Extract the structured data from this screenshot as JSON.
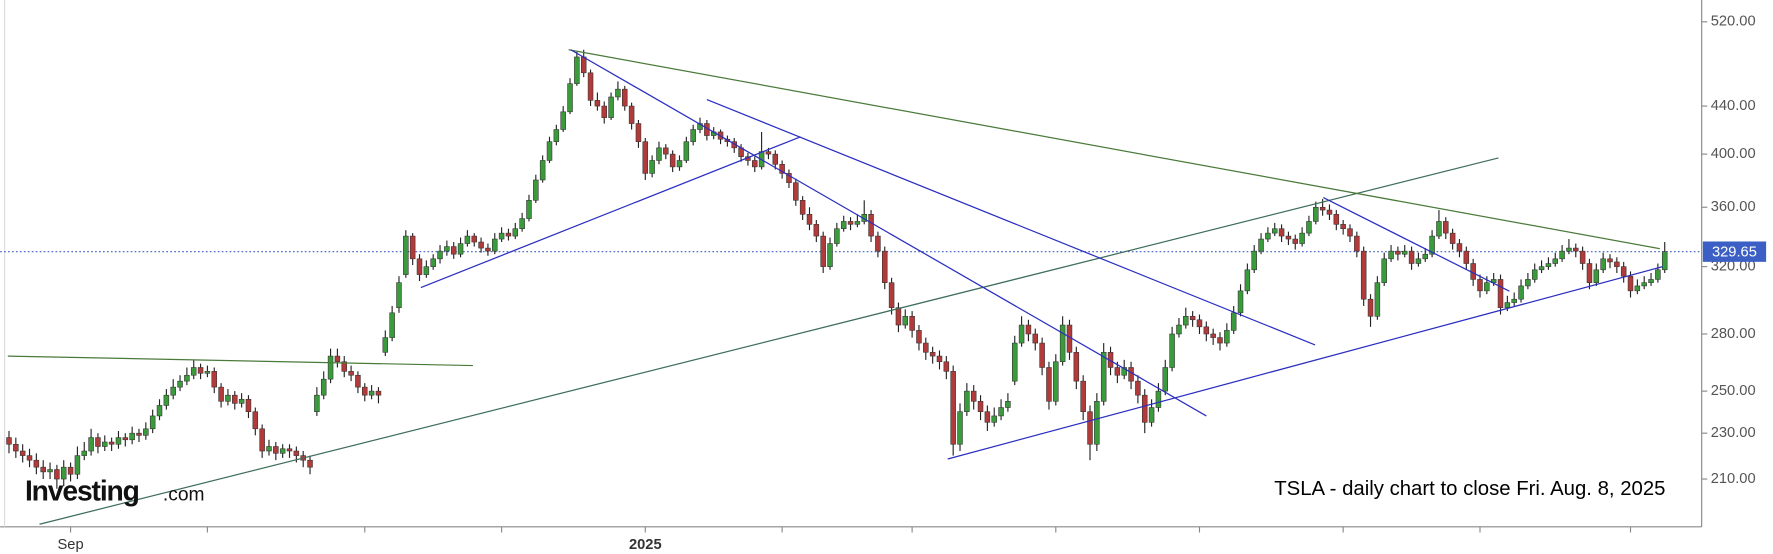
{
  "chart_data": {
    "type": "candlestick",
    "log_scale": true,
    "annotations": [
      "TSLA - daily chart to close Fri. Aug. 8, 2025"
    ],
    "watermark": [
      "Investing",
      ".com"
    ],
    "up_color": "#3b9a3b",
    "down_color": "#b13a3a",
    "last_price": 329.65,
    "last_price_color": "#3b5fc4",
    "xlim": [
      -1.3,
      247.4
    ],
    "xticks": [
      {
        "value": 9,
        "label": "Sep"
      },
      29,
      52,
      72,
      {
        "value": 93,
        "label": "2025"
      },
      113,
      132,
      153,
      174,
      195,
      215,
      237
    ],
    "ylim": [
      191,
      543
    ],
    "yticks": [
      {
        "value": 210,
        "label": "210.00"
      },
      {
        "value": 230,
        "label": "230.00"
      },
      {
        "value": 250,
        "label": "250.00"
      },
      {
        "value": 280,
        "label": "280.00"
      },
      {
        "value": 320,
        "label": "320.00"
      },
      {
        "value": 360,
        "label": "360.00"
      },
      {
        "value": 400,
        "label": "400.00"
      },
      {
        "value": 440,
        "label": "440.00"
      },
      {
        "value": 520,
        "label": "520.00"
      }
    ],
    "trendlines": [
      {
        "color": "#4a7a3a",
        "points": [
          [
            -0.17,
            268
          ],
          [
            67.8,
            263
          ]
        ]
      },
      {
        "color": "#3f6e5a",
        "points": [
          [
            4.46,
            192
          ],
          [
            217.7,
            397
          ]
        ]
      },
      {
        "color": "#4a7a3a",
        "points": [
          [
            81.8,
            492
          ],
          [
            241.3,
            331.6
          ]
        ]
      },
      {
        "color": "#2b2fc0",
        "points": [
          [
            60.2,
            307
          ],
          [
            115.7,
            414
          ]
        ]
      },
      {
        "color": "#2b2fc0",
        "points": [
          [
            82.1,
            492
          ],
          [
            175,
            238
          ]
        ]
      },
      {
        "color": "#2b2fc0",
        "points": [
          [
            102,
            445.7
          ],
          [
            190.9,
            274
          ]
        ]
      },
      {
        "color": "#2b2fc0",
        "points": [
          [
            137.2,
            218.5
          ],
          [
            241.7,
            320
          ]
        ]
      },
      {
        "color": "#2b2fc0",
        "points": [
          [
            192.1,
            367
          ],
          [
            219.3,
            304.8
          ]
        ]
      }
    ],
    "ohlc": [
      [
        228,
        231,
        221,
        225
      ],
      [
        225,
        228,
        219,
        222
      ],
      [
        222,
        225,
        217,
        220
      ],
      [
        220,
        223,
        215,
        218
      ],
      [
        218,
        221,
        212,
        215
      ],
      [
        215,
        218,
        210,
        213
      ],
      [
        213,
        217,
        210,
        214
      ],
      [
        214,
        216,
        206,
        210
      ],
      [
        210,
        218,
        207,
        215
      ],
      [
        215,
        217,
        209,
        212
      ],
      [
        212,
        224,
        210,
        220
      ],
      [
        220,
        226,
        218,
        222
      ],
      [
        222,
        232,
        220,
        228
      ],
      [
        228,
        230,
        221,
        224
      ],
      [
        224,
        229,
        222,
        226
      ],
      [
        226,
        228,
        222,
        225
      ],
      [
        225,
        231,
        223,
        228
      ],
      [
        228,
        230,
        224,
        227
      ],
      [
        227,
        233,
        225,
        230
      ],
      [
        230,
        232,
        226,
        229
      ],
      [
        229,
        235,
        227,
        232
      ],
      [
        232,
        241,
        230,
        238
      ],
      [
        238,
        246,
        236,
        243
      ],
      [
        243,
        251,
        241,
        248
      ],
      [
        248,
        256,
        246,
        252
      ],
      [
        252,
        258,
        250,
        255
      ],
      [
        255,
        262,
        253,
        258
      ],
      [
        258,
        266,
        256,
        262
      ],
      [
        262,
        264,
        256,
        259
      ],
      [
        259,
        263,
        257,
        260
      ],
      [
        260,
        262,
        249,
        252
      ],
      [
        252,
        254,
        242,
        245
      ],
      [
        245,
        251,
        243,
        248
      ],
      [
        248,
        250,
        241,
        244
      ],
      [
        244,
        249,
        242,
        246
      ],
      [
        246,
        248,
        237,
        240
      ],
      [
        240,
        242,
        229,
        232
      ],
      [
        232,
        234,
        219,
        222
      ],
      [
        222,
        227,
        220,
        224
      ],
      [
        224,
        226,
        218,
        221
      ],
      [
        221,
        225,
        219,
        223
      ],
      [
        223,
        225,
        219,
        222
      ],
      [
        222,
        224,
        217,
        220
      ],
      [
        220,
        222,
        215,
        218
      ],
      [
        218,
        220,
        212,
        215
      ],
      [
        240,
        252,
        238,
        248
      ],
      [
        248,
        260,
        246,
        256
      ],
      [
        256,
        272,
        254,
        268
      ],
      [
        268,
        272,
        262,
        265
      ],
      [
        265,
        268,
        257,
        260
      ],
      [
        260,
        263,
        255,
        258
      ],
      [
        258,
        260,
        249,
        252
      ],
      [
        252,
        254,
        245,
        248
      ],
      [
        248,
        253,
        246,
        250
      ],
      [
        250,
        252,
        244,
        248
      ],
      [
        270,
        282,
        268,
        278
      ],
      [
        278,
        296,
        276,
        292
      ],
      [
        295,
        314,
        292,
        310
      ],
      [
        315,
        344,
        313,
        340
      ],
      [
        340,
        342,
        321,
        325
      ],
      [
        325,
        328,
        311,
        315
      ],
      [
        315,
        324,
        313,
        320
      ],
      [
        320,
        328,
        318,
        325
      ],
      [
        325,
        334,
        322,
        330
      ],
      [
        330,
        337,
        327,
        333
      ],
      [
        333,
        336,
        325,
        328
      ],
      [
        328,
        339,
        326,
        335
      ],
      [
        335,
        344,
        333,
        340
      ],
      [
        340,
        342,
        333,
        336
      ],
      [
        336,
        339,
        329,
        332
      ],
      [
        332,
        335,
        327,
        330
      ],
      [
        330,
        342,
        328,
        338
      ],
      [
        338,
        346,
        336,
        342
      ],
      [
        342,
        345,
        337,
        340
      ],
      [
        340,
        349,
        338,
        345
      ],
      [
        345,
        356,
        343,
        352
      ],
      [
        352,
        369,
        350,
        365
      ],
      [
        365,
        384,
        363,
        380
      ],
      [
        380,
        399,
        378,
        395
      ],
      [
        395,
        414,
        393,
        410
      ],
      [
        410,
        424,
        407,
        420
      ],
      [
        420,
        440,
        418,
        435
      ],
      [
        435,
        465,
        433,
        460
      ],
      [
        460,
        490,
        458,
        485
      ],
      [
        485,
        492,
        466,
        470
      ],
      [
        470,
        473,
        440,
        445
      ],
      [
        445,
        452,
        436,
        440
      ],
      [
        440,
        444,
        425,
        430
      ],
      [
        430,
        452,
        428,
        448
      ],
      [
        448,
        462,
        445,
        455
      ],
      [
        455,
        458,
        436,
        440
      ],
      [
        440,
        443,
        420,
        425
      ],
      [
        425,
        428,
        405,
        410
      ],
      [
        410,
        413,
        380,
        385
      ],
      [
        385,
        399,
        382,
        395
      ],
      [
        395,
        410,
        392,
        405
      ],
      [
        405,
        408,
        396,
        400
      ],
      [
        400,
        403,
        386,
        390
      ],
      [
        390,
        399,
        387,
        395
      ],
      [
        395,
        414,
        393,
        410
      ],
      [
        410,
        424,
        407,
        420
      ],
      [
        420,
        430,
        417,
        425
      ],
      [
        425,
        428,
        411,
        415
      ],
      [
        415,
        422,
        412,
        418
      ],
      [
        418,
        420,
        408,
        412
      ],
      [
        412,
        415,
        406,
        410
      ],
      [
        410,
        413,
        401,
        405
      ],
      [
        405,
        408,
        394,
        398
      ],
      [
        398,
        401,
        391,
        395
      ],
      [
        395,
        398,
        386,
        390
      ],
      [
        390,
        418,
        388,
        402
      ],
      [
        402,
        405,
        396,
        400
      ],
      [
        400,
        403,
        388,
        392
      ],
      [
        392,
        395,
        381,
        385
      ],
      [
        385,
        388,
        374,
        378
      ],
      [
        378,
        381,
        361,
        365
      ],
      [
        365,
        368,
        351,
        355
      ],
      [
        355,
        360,
        344,
        348
      ],
      [
        348,
        351,
        336,
        340
      ],
      [
        340,
        343,
        316,
        320
      ],
      [
        320,
        339,
        318,
        335
      ],
      [
        335,
        349,
        333,
        345
      ],
      [
        345,
        354,
        343,
        350
      ],
      [
        350,
        353,
        344,
        348
      ],
      [
        348,
        355,
        346,
        350
      ],
      [
        350,
        365,
        348,
        355
      ],
      [
        355,
        358,
        336,
        340
      ],
      [
        340,
        343,
        326,
        330
      ],
      [
        330,
        333,
        306,
        310
      ],
      [
        310,
        313,
        291,
        295
      ],
      [
        295,
        298,
        281,
        285
      ],
      [
        285,
        294,
        283,
        290
      ],
      [
        290,
        293,
        278,
        282
      ],
      [
        282,
        285,
        271,
        275
      ],
      [
        275,
        278,
        266,
        270
      ],
      [
        270,
        273,
        264,
        268
      ],
      [
        268,
        271,
        261,
        265
      ],
      [
        265,
        268,
        256,
        260
      ],
      [
        260,
        263,
        220,
        225
      ],
      [
        225,
        244,
        222,
        240
      ],
      [
        240,
        254,
        238,
        250
      ],
      [
        250,
        253,
        241,
        245
      ],
      [
        245,
        248,
        236,
        240
      ],
      [
        240,
        243,
        231,
        235
      ],
      [
        235,
        242,
        233,
        238
      ],
      [
        238,
        246,
        236,
        242
      ],
      [
        242,
        249,
        240,
        245
      ],
      [
        255,
        279,
        253,
        275
      ],
      [
        275,
        290,
        273,
        285
      ],
      [
        285,
        288,
        276,
        280
      ],
      [
        280,
        283,
        271,
        275
      ],
      [
        275,
        278,
        258,
        262
      ],
      [
        262,
        265,
        241,
        245
      ],
      [
        245,
        269,
        243,
        265
      ],
      [
        265,
        290,
        263,
        285
      ],
      [
        285,
        288,
        266,
        270
      ],
      [
        270,
        273,
        251,
        255
      ],
      [
        255,
        258,
        236,
        240
      ],
      [
        240,
        243,
        218,
        225
      ],
      [
        225,
        249,
        222,
        245
      ],
      [
        245,
        275,
        243,
        270
      ],
      [
        270,
        273,
        258,
        262
      ],
      [
        262,
        265,
        254,
        258
      ],
      [
        258,
        266,
        256,
        262
      ],
      [
        262,
        265,
        251,
        255
      ],
      [
        255,
        258,
        244,
        248
      ],
      [
        248,
        251,
        230,
        235
      ],
      [
        235,
        246,
        233,
        242
      ],
      [
        242,
        254,
        240,
        250
      ],
      [
        250,
        266,
        248,
        262
      ],
      [
        262,
        284,
        260,
        280
      ],
      [
        280,
        289,
        278,
        285
      ],
      [
        285,
        295,
        283,
        290
      ],
      [
        290,
        293,
        284,
        288
      ],
      [
        288,
        291,
        280,
        284
      ],
      [
        284,
        287,
        276,
        280
      ],
      [
        280,
        283,
        274,
        278
      ],
      [
        278,
        281,
        271,
        275
      ],
      [
        275,
        286,
        273,
        282
      ],
      [
        282,
        296,
        280,
        292
      ],
      [
        292,
        309,
        290,
        305
      ],
      [
        305,
        322,
        303,
        318
      ],
      [
        318,
        334,
        316,
        330
      ],
      [
        330,
        342,
        328,
        338
      ],
      [
        338,
        346,
        336,
        342
      ],
      [
        342,
        349,
        340,
        345
      ],
      [
        345,
        348,
        336,
        340
      ],
      [
        340,
        343,
        334,
        338
      ],
      [
        338,
        341,
        331,
        335
      ],
      [
        335,
        346,
        333,
        342
      ],
      [
        342,
        354,
        340,
        350
      ],
      [
        350,
        364,
        348,
        360
      ],
      [
        360,
        366,
        354,
        358
      ],
      [
        358,
        362,
        351,
        355
      ],
      [
        355,
        358,
        344,
        348
      ],
      [
        348,
        351,
        341,
        345
      ],
      [
        345,
        348,
        336,
        340
      ],
      [
        340,
        343,
        326,
        330
      ],
      [
        330,
        333,
        296,
        300
      ],
      [
        300,
        303,
        284,
        290
      ],
      [
        290,
        314,
        288,
        310
      ],
      [
        310,
        329,
        308,
        325
      ],
      [
        325,
        334,
        323,
        330
      ],
      [
        330,
        333,
        324,
        328
      ],
      [
        328,
        334,
        326,
        330
      ],
      [
        330,
        333,
        318,
        322
      ],
      [
        322,
        329,
        320,
        325
      ],
      [
        325,
        332,
        323,
        328
      ],
      [
        328,
        344,
        326,
        340
      ],
      [
        340,
        358,
        338,
        350
      ],
      [
        350,
        353,
        338,
        342
      ],
      [
        342,
        345,
        331,
        335
      ],
      [
        335,
        338,
        326,
        330
      ],
      [
        330,
        333,
        318,
        322
      ],
      [
        322,
        325,
        308,
        312
      ],
      [
        312,
        315,
        301,
        305
      ],
      [
        305,
        314,
        303,
        310
      ],
      [
        310,
        316,
        308,
        312
      ],
      [
        312,
        315,
        291,
        295
      ],
      [
        295,
        302,
        293,
        298
      ],
      [
        298,
        304,
        296,
        300
      ],
      [
        300,
        312,
        298,
        308
      ],
      [
        308,
        316,
        306,
        312
      ],
      [
        312,
        322,
        310,
        318
      ],
      [
        318,
        324,
        316,
        320
      ],
      [
        320,
        326,
        318,
        322
      ],
      [
        322,
        329,
        320,
        325
      ],
      [
        325,
        334,
        323,
        330
      ],
      [
        330,
        338,
        328,
        332
      ],
      [
        332,
        335,
        326,
        330
      ],
      [
        330,
        333,
        318,
        322
      ],
      [
        322,
        325,
        306,
        310
      ],
      [
        310,
        322,
        308,
        318
      ],
      [
        318,
        329,
        316,
        325
      ],
      [
        325,
        328,
        319,
        323
      ],
      [
        323,
        326,
        316,
        320
      ],
      [
        320,
        323,
        310,
        314
      ],
      [
        314,
        317,
        301,
        305
      ],
      [
        305,
        312,
        303,
        308
      ],
      [
        308,
        314,
        306,
        310
      ],
      [
        310,
        316,
        308,
        312
      ],
      [
        312,
        322,
        310,
        318
      ],
      [
        318,
        336,
        316,
        329.65
      ]
    ]
  }
}
